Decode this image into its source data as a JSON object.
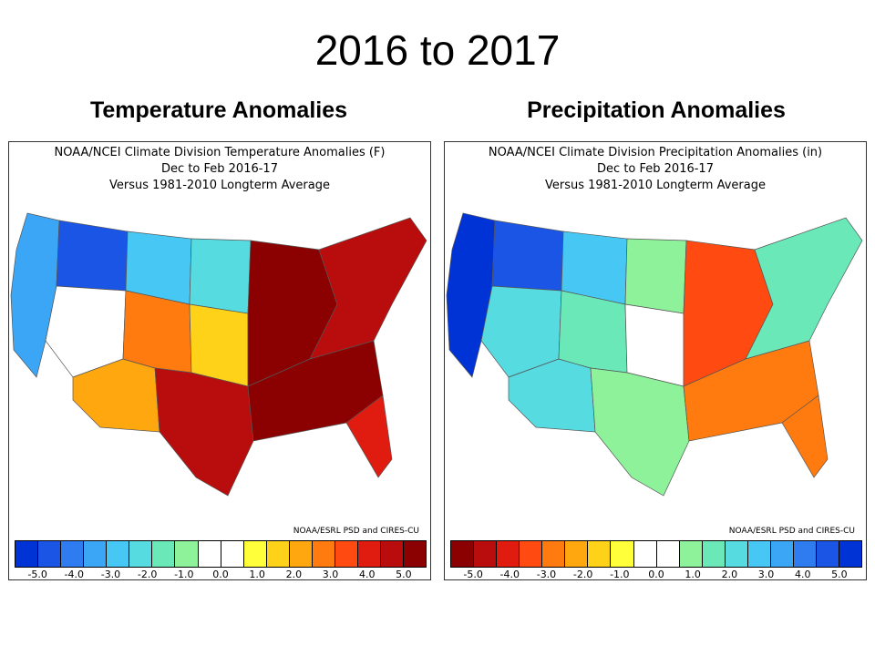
{
  "slide": {
    "title": "2016 to 2017"
  },
  "panels": [
    {
      "heading": "Temperature Anomalies",
      "title_lines": [
        "NOAA/NCEI Climate Division Temperature Anomalies (F)",
        "Dec to Feb 2016-17",
        "Versus 1981-2010 Longterm Average"
      ],
      "credit": "NOAA/ESRL PSD and CIRES-CU",
      "colorbar": {
        "colors": [
          "#0033d6",
          "#1a55e6",
          "#2f7bf0",
          "#3ba6f6",
          "#47c8f4",
          "#55dbe0",
          "#6ae8b8",
          "#8ef29a",
          "#ffffff",
          "#ffffff",
          "#ffff3a",
          "#ffd21a",
          "#ffa70f",
          "#ff7b10",
          "#ff4a12",
          "#e01b0f",
          "#b90d0d",
          "#8b0000"
        ],
        "ticks": [
          "-5.0",
          "-4.0",
          "-3.0",
          "-2.0",
          "-1.0",
          "0.0",
          "1.0",
          "2.0",
          "3.0",
          "4.0",
          "5.0"
        ]
      },
      "map_colors": {
        "west_coast": "#3ba6f6",
        "northwest": "#1a55e6",
        "northern_rockies": "#47c8f4",
        "northern_plains": "#55dbe0",
        "great_basin": "#ffffff",
        "southwest": "#ffa70f",
        "southern_rockies": "#ff7b10",
        "central_plains": "#ffd21a",
        "texas": "#b90d0d",
        "midwest": "#8b0000",
        "southeast": "#8b0000",
        "northeast": "#b90d0d",
        "florida": "#e01b0f"
      }
    },
    {
      "heading": "Precipitation Anomalies",
      "title_lines": [
        "NOAA/NCEI Climate Division Precipitation Anomalies (in)",
        "Dec to Feb 2016-17",
        "Versus 1981-2010 Longterm Average"
      ],
      "credit": "NOAA/ESRL PSD and CIRES-CU",
      "colorbar": {
        "colors": [
          "#8b0000",
          "#b90d0d",
          "#e01b0f",
          "#ff4a12",
          "#ff7b10",
          "#ffa70f",
          "#ffd21a",
          "#ffff3a",
          "#ffffff",
          "#ffffff",
          "#8ef29a",
          "#6ae8b8",
          "#55dbe0",
          "#47c8f4",
          "#3ba6f6",
          "#2f7bf0",
          "#1a55e6",
          "#0033d6"
        ],
        "ticks": [
          "-5.0",
          "-4.0",
          "-3.0",
          "-2.0",
          "-1.0",
          "0.0",
          "1.0",
          "2.0",
          "3.0",
          "4.0",
          "5.0"
        ]
      },
      "map_colors": {
        "west_coast": "#0033d6",
        "northwest": "#1a55e6",
        "northern_rockies": "#47c8f4",
        "northern_plains": "#8ef29a",
        "great_basin": "#55dbe0",
        "southwest": "#55dbe0",
        "southern_rockies": "#6ae8b8",
        "central_plains": "#ffffff",
        "texas": "#8ef29a",
        "midwest": "#ff4a12",
        "southeast": "#ff7b10",
        "northeast": "#6ae8b8",
        "florida": "#ff7b10"
      }
    }
  ]
}
